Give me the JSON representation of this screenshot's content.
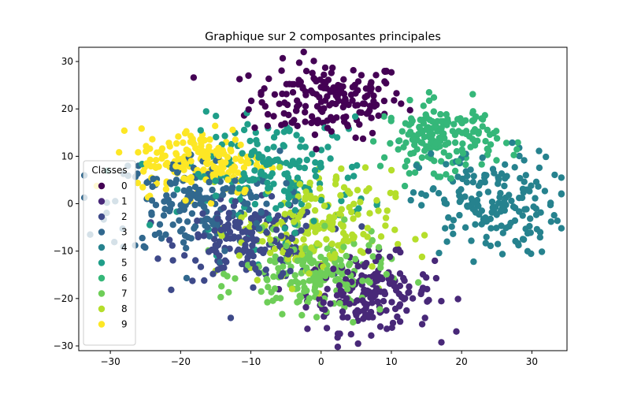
{
  "chart_data": {
    "type": "scatter",
    "title": "Graphique sur 2 composantes principales",
    "xlabel": "",
    "ylabel": "",
    "xlim": [
      -34.5,
      35
    ],
    "ylim": [
      -31,
      33
    ],
    "xticks": [
      -30,
      -20,
      -10,
      0,
      10,
      20,
      30
    ],
    "yticks": [
      -30,
      -20,
      -10,
      0,
      10,
      20,
      30
    ],
    "grid": false,
    "legend": {
      "title": "Classes",
      "placement": "center-left"
    },
    "colormap": "viridis",
    "series": [
      {
        "name": "0",
        "color": "#440154",
        "center": [
          1,
          22
        ],
        "spread": [
          5.5,
          4.0
        ],
        "count": 180
      },
      {
        "name": "1",
        "color": "#482878",
        "center": [
          7,
          -19
        ],
        "spread": [
          4.5,
          4.0
        ],
        "count": 180
      },
      {
        "name": "2",
        "color": "#3e4989",
        "center": [
          -10,
          -8
        ],
        "spread": [
          5.0,
          4.0
        ],
        "count": 180
      },
      {
        "name": "3",
        "color": "#31688e",
        "center": [
          -18,
          0
        ],
        "spread": [
          6.0,
          5.5
        ],
        "count": 180
      },
      {
        "name": "4",
        "color": "#26828e",
        "center": [
          24,
          0
        ],
        "spread": [
          5.0,
          5.5
        ],
        "count": 180
      },
      {
        "name": "5",
        "color": "#1f9e89",
        "center": [
          -6,
          6
        ],
        "spread": [
          6.5,
          6.0
        ],
        "count": 180
      },
      {
        "name": "6",
        "color": "#35b779",
        "center": [
          17,
          14
        ],
        "spread": [
          4.0,
          3.5
        ],
        "count": 180
      },
      {
        "name": "7",
        "color": "#6ece58",
        "center": [
          -1,
          -15
        ],
        "spread": [
          5.0,
          4.0
        ],
        "count": 180
      },
      {
        "name": "8",
        "color": "#b5de2b",
        "center": [
          -1,
          -5
        ],
        "spread": [
          5.5,
          6.0
        ],
        "count": 180
      },
      {
        "name": "9",
        "color": "#fde725",
        "center": [
          -17,
          9
        ],
        "spread": [
          4.5,
          3.5
        ],
        "count": 180
      }
    ]
  }
}
